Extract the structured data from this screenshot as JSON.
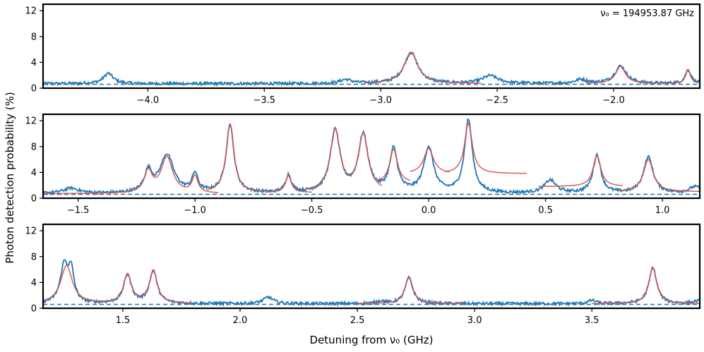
{
  "chart_data": {
    "type": "line",
    "ylabel": "Photon detection probability (%)",
    "xlabel": "Detuning from ν₀ (GHz)",
    "annotation": "ν₀ = 194953.87 GHz",
    "colors": {
      "data": "#1f77b4",
      "fit": "#d9534f",
      "baseline": "#1f77b4"
    },
    "baseline_y": 0.6,
    "panels": [
      {
        "xlim": [
          -4.45,
          -1.63
        ],
        "ylim": [
          0,
          13
        ],
        "xticks": [
          -4.0,
          -3.5,
          -3.0,
          -2.5,
          -2.0
        ],
        "xtick_labels": [
          "−4.0",
          "−3.5",
          "−3.0",
          "−2.5",
          "−2.0"
        ],
        "yticks": [
          0,
          4,
          8,
          12
        ],
        "ytick_labels": [
          "0",
          "4",
          "8",
          "12"
        ],
        "data_peaks": [
          [
            -4.17,
            1.6,
            0.025
          ],
          [
            -3.15,
            0.6,
            0.03
          ],
          [
            -2.87,
            4.8,
            0.035
          ],
          [
            -2.53,
            1.2,
            0.04
          ],
          [
            -2.14,
            0.6,
            0.03
          ],
          [
            -1.97,
            2.7,
            0.03
          ],
          [
            -1.68,
            2.1,
            0.015
          ]
        ],
        "fits": [
          {
            "range": [
              -3.07,
              -2.57
            ],
            "peaks": [
              [
                -2.87,
                4.9,
                0.035
              ]
            ],
            "base": 0.7
          },
          {
            "range": [
              -2.12,
              -1.64
            ],
            "peaks": [
              [
                -1.97,
                2.7,
                0.025
              ],
              [
                -1.68,
                2.2,
                0.012
              ]
            ],
            "base": 0.7
          }
        ]
      },
      {
        "xlim": [
          -1.65,
          1.16
        ],
        "ylim": [
          0,
          13
        ],
        "xticks": [
          -1.5,
          -1.0,
          -0.5,
          0.0,
          0.5,
          1.0
        ],
        "xtick_labels": [
          "−1.5",
          "−1.0",
          "−0.5",
          "0.0",
          "0.5",
          "1.0"
        ],
        "yticks": [
          0,
          4,
          8,
          12
        ],
        "ytick_labels": [
          "0",
          "4",
          "8",
          "12"
        ],
        "data_peaks": [
          [
            -1.53,
            0.8,
            0.04
          ],
          [
            -1.2,
            3.2,
            0.02
          ],
          [
            -1.12,
            5.9,
            0.035
          ],
          [
            -1.0,
            2.8,
            0.015
          ],
          [
            -0.85,
            10.6,
            0.02
          ],
          [
            -0.6,
            2.7,
            0.015
          ],
          [
            -0.4,
            9.6,
            0.025
          ],
          [
            -0.28,
            8.9,
            0.025
          ],
          [
            -0.15,
            6.6,
            0.02
          ],
          [
            0.0,
            7.0,
            0.025
          ],
          [
            0.17,
            11.3,
            0.02
          ],
          [
            0.52,
            2.0,
            0.03
          ],
          [
            0.72,
            5.9,
            0.02
          ],
          [
            0.94,
            5.6,
            0.025
          ],
          [
            1.14,
            1.0,
            0.03
          ]
        ],
        "fits": [
          {
            "range": [
              -1.65,
              -0.9
            ],
            "peaks": [
              [
                -1.2,
                3.3,
                0.02
              ],
              [
                -1.12,
                5.6,
                0.03
              ],
              [
                -1.0,
                2.6,
                0.015
              ]
            ],
            "base": 0.7
          },
          {
            "range": [
              -0.95,
              -0.7
            ],
            "peaks": [
              [
                -0.85,
                10.6,
                0.02
              ]
            ],
            "base": 0.9
          },
          {
            "range": [
              -0.7,
              -0.5
            ],
            "peaks": [
              [
                -0.6,
                2.6,
                0.015
              ]
            ],
            "base": 0.9
          },
          {
            "range": [
              -0.52,
              -0.2
            ],
            "peaks": [
              [
                -0.4,
                9.5,
                0.025
              ],
              [
                -0.28,
                8.8,
                0.025
              ]
            ],
            "base": 1.0
          },
          {
            "range": [
              -0.22,
              -0.08
            ],
            "peaks": [
              [
                -0.15,
                5.2,
                0.02
              ]
            ],
            "base": 2.4
          },
          {
            "range": [
              -0.08,
              0.09
            ],
            "peaks": [
              [
                0.0,
                3.9,
                0.025
              ]
            ],
            "base": 3.8
          },
          {
            "range": [
              0.07,
              0.42
            ],
            "peaks": [
              [
                0.17,
                7.8,
                0.02
              ]
            ],
            "base": 3.8
          },
          {
            "range": [
              0.47,
              0.83
            ],
            "peaks": [
              [
                0.72,
                4.8,
                0.02
              ]
            ],
            "base": 1.8
          },
          {
            "range": [
              0.81,
              1.16
            ],
            "peaks": [
              [
                0.94,
                5.0,
                0.025
              ]
            ],
            "base": 1.0
          }
        ]
      },
      {
        "xlim": [
          1.16,
          3.96
        ],
        "ylim": [
          0,
          13
        ],
        "xticks": [
          1.5,
          2.0,
          2.5,
          3.0,
          3.5
        ],
        "xtick_labels": [
          "1.5",
          "2.0",
          "2.5",
          "3.0",
          "3.5"
        ],
        "yticks": [
          0,
          4,
          8,
          12
        ],
        "ytick_labels": [
          "0",
          "4",
          "8",
          "12"
        ],
        "data_peaks": [
          [
            1.25,
            5.8,
            0.02
          ],
          [
            1.28,
            4.6,
            0.015
          ],
          [
            1.52,
            4.4,
            0.02
          ],
          [
            1.63,
            5.0,
            0.02
          ],
          [
            2.12,
            1.0,
            0.025
          ],
          [
            2.6,
            0.4,
            0.02
          ],
          [
            2.72,
            4.0,
            0.02
          ],
          [
            3.5,
            0.5,
            0.02
          ],
          [
            3.76,
            5.6,
            0.02
          ],
          [
            3.95,
            0.4,
            0.02
          ]
        ],
        "fits": [
          {
            "range": [
              1.16,
              1.8
            ],
            "peaks": [
              [
                1.26,
                5.9,
                0.03
              ],
              [
                1.52,
                4.5,
                0.02
              ],
              [
                1.63,
                5.1,
                0.02
              ]
            ],
            "base": 0.7
          },
          {
            "range": [
              2.5,
              2.95
            ],
            "peaks": [
              [
                2.72,
                4.2,
                0.02
              ]
            ],
            "base": 0.7
          },
          {
            "range": [
              3.5,
              3.96
            ],
            "peaks": [
              [
                3.76,
                5.6,
                0.02
              ]
            ],
            "base": 0.7
          }
        ]
      }
    ]
  }
}
